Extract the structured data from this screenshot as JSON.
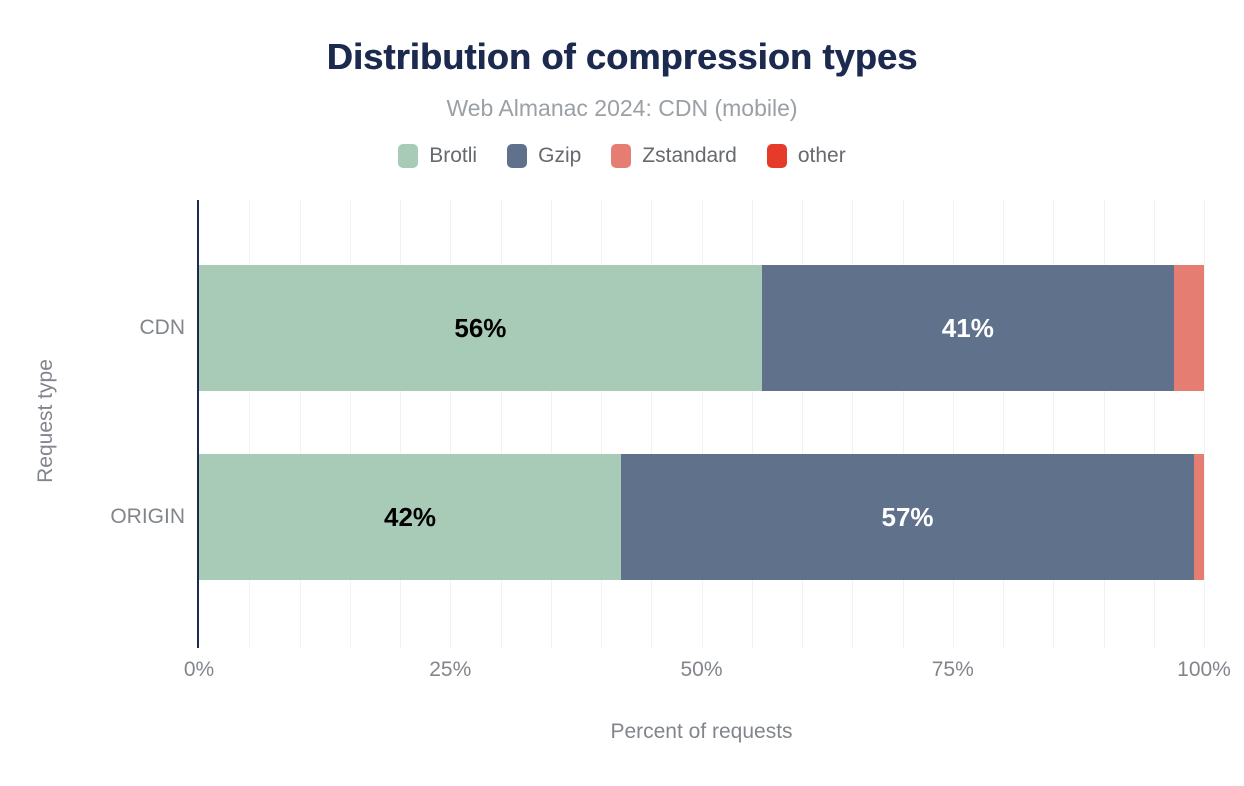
{
  "header": {
    "title": "Distribution of compression types",
    "subtitle": "Web Almanac 2024: CDN (mobile)"
  },
  "colors": {
    "title_navy": "#1b2a4e",
    "axis_line_navy": "#1b2a4e",
    "gridline_gray": "#f2f2f2",
    "subtitle_gray": "#9aa0a5",
    "axis_text_gray": "#82868c",
    "legend_text_gray": "#66696e",
    "brotli_green": "#a8cbb8",
    "gzip_slate": "#5f718b",
    "zstandard_salmon": "#e57d72",
    "other_red": "#e63a2a"
  },
  "chart_data": {
    "type": "bar",
    "orientation": "horizontal",
    "stacked": true,
    "title": "Distribution of compression types",
    "subtitle": "Web Almanac 2024: CDN (mobile)",
    "xlabel": "Percent of requests",
    "ylabel": "Request type",
    "xlim": [
      0,
      100
    ],
    "grid": "vertical gridlines every 5%",
    "legend_position": "top",
    "x_ticks": [
      {
        "label": "0%",
        "value": 0
      },
      {
        "label": "25%",
        "value": 25
      },
      {
        "label": "50%",
        "value": 50
      },
      {
        "label": "75%",
        "value": 75
      },
      {
        "label": "100%",
        "value": 100
      }
    ],
    "categories": [
      "CDN",
      "ORIGIN"
    ],
    "series": [
      {
        "name": "Brotli",
        "color": "#a8cbb8",
        "label_color": "#000000",
        "values": [
          56,
          42
        ],
        "data_labels": [
          "56%",
          "42%"
        ]
      },
      {
        "name": "Gzip",
        "color": "#5f718b",
        "label_color": "#ffffff",
        "values": [
          41,
          57
        ],
        "data_labels": [
          "41%",
          "57%"
        ]
      },
      {
        "name": "Zstandard",
        "color": "#e57d72",
        "label_color": "#000000",
        "values": [
          3,
          1
        ],
        "data_labels": [
          "",
          ""
        ]
      },
      {
        "name": "other",
        "color": "#e63a2a",
        "label_color": "#ffffff",
        "values": [
          0,
          0
        ],
        "data_labels": [
          "",
          ""
        ]
      }
    ]
  }
}
